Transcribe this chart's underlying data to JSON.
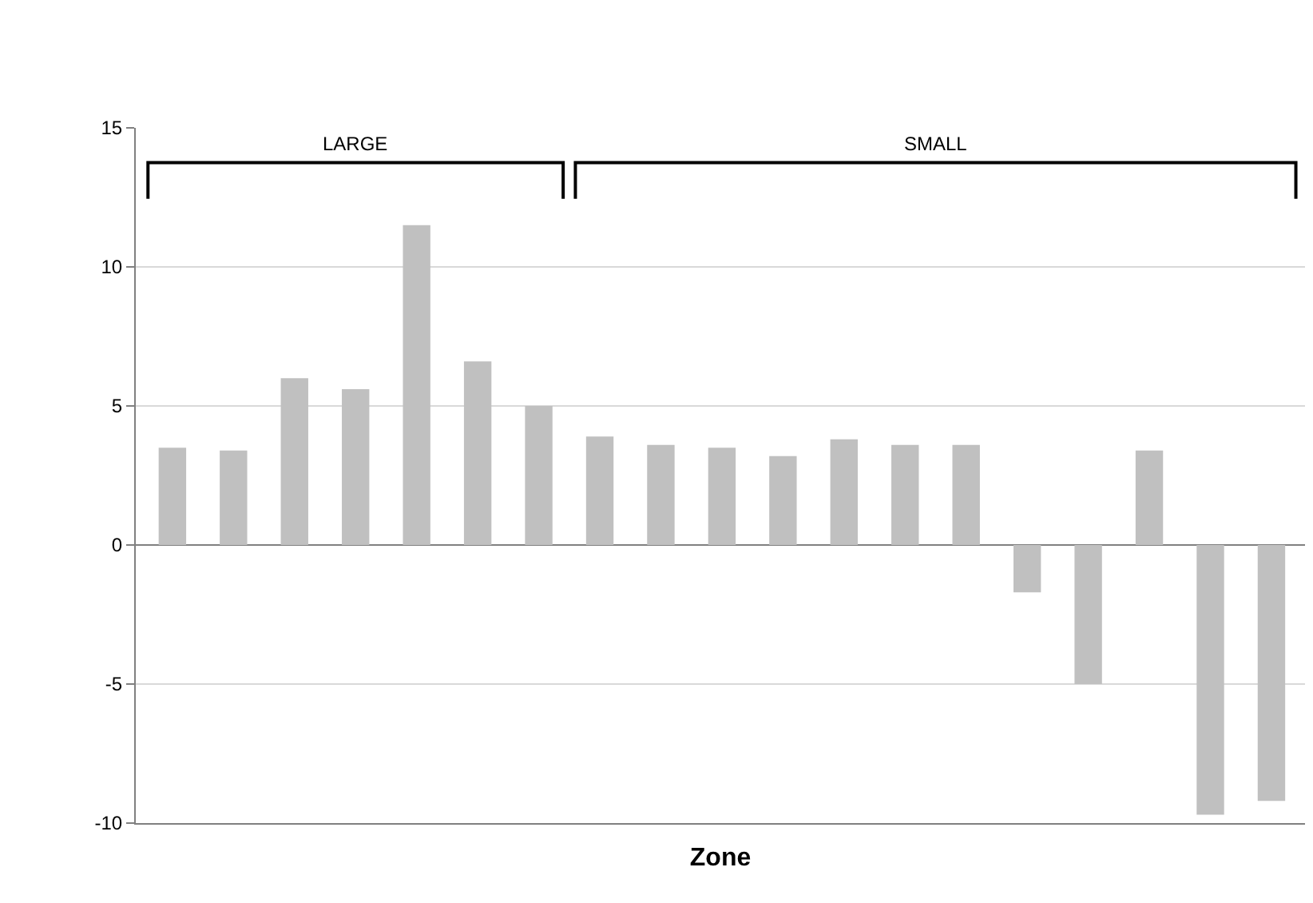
{
  "chart_data": {
    "type": "bar",
    "xlabel": "Zone",
    "categories": [
      null,
      null,
      null,
      null,
      null,
      null,
      null,
      null,
      null,
      null,
      null,
      null,
      null,
      null,
      null,
      null,
      null,
      null,
      null
    ],
    "values": [
      3.5,
      3.4,
      6.0,
      5.6,
      11.5,
      6.6,
      5.0,
      3.9,
      3.6,
      3.5,
      3.2,
      3.8,
      3.6,
      3.6,
      -1.7,
      -5.0,
      3.4,
      -9.7,
      -9.2
    ],
    "color": "#c0c0c0",
    "ylim": [
      -10,
      15
    ],
    "yticks": [
      -10,
      -5,
      0,
      5,
      10,
      15
    ],
    "grid": "y",
    "tick_labels": "y",
    "annotations": [
      "LARGE",
      "SMALL"
    ]
  }
}
